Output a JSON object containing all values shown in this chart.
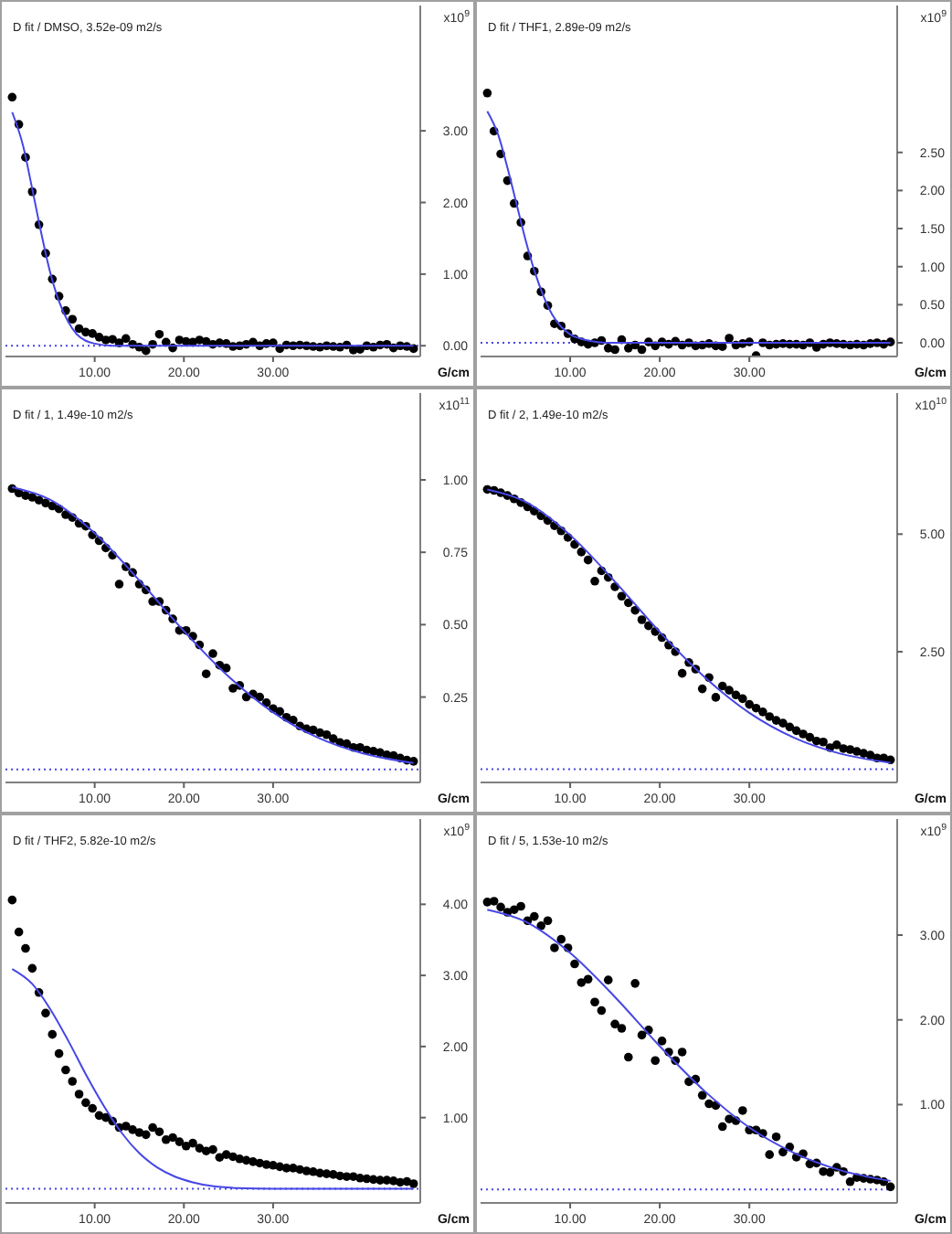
{
  "chart_data": [
    {
      "type": "scatter",
      "title": "D fit / DMSO, 3.52e-09 m2/s",
      "xlabel": "G/cm",
      "ylabel": "x10$^{9}$",
      "xlim": [
        0,
        46.5
      ],
      "xticks": [
        {
          "value": 10,
          "label": "10.00"
        },
        {
          "value": 20,
          "label": "20.00"
        },
        {
          "value": 30,
          "label": "30.00"
        }
      ],
      "ylim": [
        -0.15,
        4.75
      ],
      "yticks": [
        {
          "value": 0,
          "label": "0.00"
        },
        {
          "value": 1,
          "label": "1.00"
        },
        {
          "value": 2,
          "label": "2.00"
        },
        {
          "value": 3,
          "label": "3.00"
        }
      ],
      "x": [
        0.75,
        1.5,
        2.25,
        3,
        3.75,
        4.5,
        5.25,
        6,
        6.75,
        7.5,
        8.25,
        9,
        9.75,
        10.5,
        11.25,
        12,
        12.75,
        13.5,
        14.25,
        15,
        15.75,
        16.5,
        17.25,
        18,
        18.75,
        19.5,
        20.25,
        21,
        21.75,
        22.5,
        23.25,
        24,
        24.75,
        25.5,
        26.25,
        27,
        27.75,
        28.5,
        29.25,
        30,
        30.75,
        31.5,
        32.25,
        33,
        33.75,
        34.5,
        35.25,
        36,
        36.75,
        37.5,
        38.25,
        39,
        39.75,
        40.5,
        41.25,
        42,
        42.75,
        43.5,
        44.25,
        45,
        45.75
      ],
      "series": [
        {
          "marker": "circle",
          "color": "#000000",
          "values": [
            3.47,
            3.09,
            2.63,
            2.15,
            1.69,
            1.29,
            0.93,
            0.69,
            0.49,
            0.37,
            0.24,
            0.19,
            0.17,
            0.12,
            0.08,
            0.09,
            0.04,
            0.1,
            0.02,
            -0.02,
            -0.07,
            0.02,
            0.16,
            0.05,
            -0.03,
            0.08,
            0.06,
            0.05,
            0.08,
            0.06,
            0.02,
            0.04,
            0.03,
            -0.01,
            0.0,
            0.02,
            0.05,
            0.0,
            0.03,
            0.04,
            -0.04,
            0.01,
            0.0,
            0.01,
            0.0,
            -0.01,
            -0.02,
            0.0,
            -0.01,
            -0.02,
            0.01,
            -0.06,
            -0.05,
            0.0,
            -0.02,
            0.01,
            0.02,
            -0.03,
            0.0,
            -0.01,
            -0.04
          ]
        },
        {
          "type": "line",
          "color": "#4646e6",
          "x": [
            0.75,
            2,
            3,
            4,
            5,
            6,
            7,
            8,
            9,
            10,
            12,
            15,
            20,
            30,
            45.75
          ],
          "values": [
            3.26,
            2.78,
            2.19,
            1.58,
            1.03,
            0.62,
            0.34,
            0.16,
            0.07,
            0.03,
            0,
            0,
            0,
            0,
            0
          ]
        }
      ],
      "ref_lines": [
        {
          "axis": "y",
          "value": 0,
          "color": "#4646e6",
          "line_style": "dotted"
        }
      ]
    },
    {
      "type": "scatter",
      "title": "D fit / THF1, 2.89e-09 m2/s",
      "xlabel": "G/cm",
      "ylabel": "x10$^{9}$",
      "xlim": [
        0,
        46.5
      ],
      "xticks": [
        {
          "value": 10,
          "label": "10.00"
        },
        {
          "value": 20,
          "label": "20.00"
        },
        {
          "value": 30,
          "label": "30.00"
        }
      ],
      "ylim": [
        -0.18,
        4.43
      ],
      "yticks": [
        {
          "value": 0,
          "label": "0.00"
        },
        {
          "value": 0.5,
          "label": "0.50"
        },
        {
          "value": 1,
          "label": "1.00"
        },
        {
          "value": 1.5,
          "label": "1.50"
        },
        {
          "value": 2,
          "label": "2.00"
        },
        {
          "value": 2.5,
          "label": "2.50"
        }
      ],
      "x": [
        0.75,
        1.5,
        2.25,
        3,
        3.75,
        4.5,
        5.25,
        6,
        6.75,
        7.5,
        8.25,
        9,
        9.75,
        10.5,
        11.25,
        12,
        12.75,
        13.5,
        14.25,
        15,
        15.75,
        16.5,
        17.25,
        18,
        18.75,
        19.5,
        20.25,
        21,
        21.75,
        22.5,
        23.25,
        24,
        24.75,
        25.5,
        26.25,
        27,
        27.75,
        28.5,
        29.25,
        30,
        30.75,
        31.5,
        32.25,
        33,
        33.75,
        34.5,
        35.25,
        36,
        36.75,
        37.5,
        38.25,
        39,
        39.75,
        40.5,
        41.25,
        42,
        42.75,
        43.5,
        44.25,
        45,
        45.75
      ],
      "series": [
        {
          "marker": "circle",
          "color": "#000000",
          "values": [
            3.28,
            2.78,
            2.48,
            2.13,
            1.83,
            1.58,
            1.14,
            0.94,
            0.67,
            0.49,
            0.25,
            0.22,
            0.12,
            0.05,
            0.01,
            -0.02,
            0.0,
            0.03,
            -0.07,
            -0.09,
            0.04,
            -0.07,
            -0.03,
            -0.09,
            0.01,
            -0.04,
            0.01,
            -0.02,
            0.02,
            -0.03,
            0.0,
            -0.04,
            -0.03,
            -0.01,
            -0.04,
            -0.05,
            0.06,
            -0.03,
            -0.01,
            0.01,
            -0.17,
            0.0,
            -0.03,
            -0.02,
            -0.01,
            -0.02,
            -0.02,
            -0.03,
            0.0,
            -0.06,
            -0.02,
            0.0,
            -0.01,
            -0.02,
            -0.03,
            -0.02,
            -0.03,
            -0.01,
            0.0,
            -0.02,
            0.01
          ]
        },
        {
          "type": "line",
          "color": "#4646e6",
          "x": [
            0.75,
            2,
            3,
            4,
            5,
            6,
            7,
            8,
            9,
            10,
            11,
            12,
            14,
            20,
            30,
            45.75
          ],
          "values": [
            3.04,
            2.72,
            2.3,
            1.83,
            1.36,
            0.95,
            0.62,
            0.37,
            0.21,
            0.11,
            0.06,
            0.03,
            0,
            0,
            0,
            0
          ]
        }
      ],
      "ref_lines": [
        {
          "axis": "y",
          "value": 0,
          "color": "#4646e6",
          "line_style": "dotted"
        }
      ]
    },
    {
      "type": "scatter",
      "title": "D fit / 1, 1.49e-10 m2/s",
      "xlabel": "G/cm",
      "ylabel": "x10$^{11}$",
      "xlim": [
        0,
        46.5
      ],
      "xticks": [
        {
          "value": 10,
          "label": "10.00"
        },
        {
          "value": 20,
          "label": "20.00"
        },
        {
          "value": 30,
          "label": "30.00"
        }
      ],
      "ylim": [
        -0.045,
        1.3
      ],
      "yticks": [
        {
          "value": 0.25,
          "label": "0.25"
        },
        {
          "value": 0.5,
          "label": "0.50"
        },
        {
          "value": 0.75,
          "label": "0.75"
        },
        {
          "value": 1,
          "label": "1.00"
        }
      ],
      "x": [
        0.75,
        1.5,
        2.25,
        3,
        3.75,
        4.5,
        5.25,
        6,
        6.75,
        7.5,
        8.25,
        9,
        9.75,
        10.5,
        11.25,
        12,
        12.75,
        13.5,
        14.25,
        15,
        15.75,
        16.5,
        17.25,
        18,
        18.75,
        19.5,
        20.25,
        21,
        21.75,
        22.5,
        23.25,
        24,
        24.75,
        25.5,
        26.25,
        27,
        27.75,
        28.5,
        29.25,
        30,
        30.75,
        31.5,
        32.25,
        33,
        33.75,
        34.5,
        35.25,
        36,
        36.75,
        37.5,
        38.25,
        39,
        39.75,
        40.5,
        41.25,
        42,
        42.75,
        43.5,
        44.25,
        45,
        45.75
      ],
      "series": [
        {
          "marker": "circle",
          "color": "#000000",
          "values": [
            0.97,
            0.955,
            0.946,
            0.94,
            0.93,
            0.92,
            0.91,
            0.9,
            0.88,
            0.87,
            0.85,
            0.84,
            0.81,
            0.79,
            0.765,
            0.74,
            0.64,
            0.7,
            0.68,
            0.64,
            0.62,
            0.58,
            0.58,
            0.55,
            0.52,
            0.48,
            0.48,
            0.46,
            0.43,
            0.33,
            0.4,
            0.36,
            0.35,
            0.28,
            0.29,
            0.25,
            0.26,
            0.25,
            0.23,
            0.21,
            0.2,
            0.18,
            0.17,
            0.15,
            0.14,
            0.136,
            0.127,
            0.12,
            0.106,
            0.093,
            0.089,
            0.076,
            0.076,
            0.067,
            0.063,
            0.058,
            0.05,
            0.048,
            0.039,
            0.032,
            0.028
          ]
        },
        {
          "type": "line",
          "color": "#4646e6",
          "x": [
            0.75,
            5,
            10,
            15,
            20,
            25,
            30,
            35,
            40,
            45.75
          ],
          "values": [
            0.975,
            0.932,
            0.816,
            0.653,
            0.478,
            0.321,
            0.197,
            0.11,
            0.056,
            0.022
          ]
        }
      ],
      "ref_lines": [
        {
          "axis": "y",
          "value": 0,
          "color": "#4646e6",
          "line_style": "dotted"
        }
      ]
    },
    {
      "type": "scatter",
      "title": "D fit / 2, 1.49e-10 m2/s",
      "xlabel": "G/cm",
      "ylabel": "x10$^{10}$",
      "xlim": [
        0,
        46.5
      ],
      "xticks": [
        {
          "value": 10,
          "label": "10.00"
        },
        {
          "value": 20,
          "label": "20.00"
        },
        {
          "value": 30,
          "label": "30.00"
        }
      ],
      "ylim": [
        -0.28,
        8
      ],
      "yticks": [
        {
          "value": 2.5,
          "label": "2.50"
        },
        {
          "value": 5,
          "label": "5.00"
        }
      ],
      "x": [
        0.75,
        1.5,
        2.25,
        3,
        3.75,
        4.5,
        5.25,
        6,
        6.75,
        7.5,
        8.25,
        9,
        9.75,
        10.5,
        11.25,
        12,
        12.75,
        13.5,
        14.25,
        15,
        15.75,
        16.5,
        17.25,
        18,
        18.75,
        19.5,
        20.25,
        21,
        21.75,
        22.5,
        23.25,
        24,
        24.75,
        25.5,
        26.25,
        27,
        27.75,
        28.5,
        29.25,
        30,
        30.75,
        31.5,
        32.25,
        33,
        33.75,
        34.5,
        35.25,
        36,
        36.75,
        37.5,
        38.25,
        39,
        39.75,
        40.5,
        41.25,
        42,
        42.75,
        43.5,
        44.25,
        45,
        45.75
      ],
      "series": [
        {
          "marker": "circle",
          "color": "#000000",
          "values": [
            5.95,
            5.93,
            5.88,
            5.82,
            5.75,
            5.67,
            5.58,
            5.49,
            5.39,
            5.29,
            5.18,
            5.07,
            4.93,
            4.78,
            4.62,
            4.45,
            4.0,
            4.22,
            4.08,
            3.88,
            3.68,
            3.54,
            3.38,
            3.18,
            3.05,
            2.93,
            2.8,
            2.64,
            2.5,
            2.04,
            2.27,
            2.13,
            1.71,
            1.95,
            1.53,
            1.77,
            1.68,
            1.58,
            1.5,
            1.38,
            1.3,
            1.22,
            1.12,
            1.04,
            0.98,
            0.9,
            0.82,
            0.75,
            0.68,
            0.6,
            0.58,
            0.46,
            0.52,
            0.44,
            0.42,
            0.38,
            0.34,
            0.3,
            0.24,
            0.24,
            0.2
          ]
        },
        {
          "type": "line",
          "color": "#4646e6",
          "x": [
            0.75,
            5,
            10,
            15,
            20,
            25,
            30,
            35,
            40,
            45.75
          ],
          "values": [
            5.95,
            5.69,
            4.98,
            3.99,
            2.92,
            1.96,
            1.2,
            0.67,
            0.34,
            0.14
          ]
        }
      ],
      "ref_lines": [
        {
          "axis": "y",
          "value": 0,
          "color": "#4646e6",
          "line_style": "dotted"
        }
      ]
    },
    {
      "type": "scatter",
      "title": "D fit / THF2, 5.82e-10 m2/s",
      "xlabel": "G/cm",
      "ylabel": "x10$^{9}$",
      "xlim": [
        0,
        46.5
      ],
      "xticks": [
        {
          "value": 10,
          "label": "10.00"
        },
        {
          "value": 20,
          "label": "20.00"
        },
        {
          "value": 30,
          "label": "30.00"
        }
      ],
      "ylim": [
        -0.2,
        5.2
      ],
      "yticks": [
        {
          "value": 1,
          "label": "1.00"
        },
        {
          "value": 2,
          "label": "2.00"
        },
        {
          "value": 3,
          "label": "3.00"
        },
        {
          "value": 4,
          "label": "4.00"
        }
      ],
      "x": [
        0.75,
        1.5,
        2.25,
        3,
        3.75,
        4.5,
        5.25,
        6,
        6.75,
        7.5,
        8.25,
        9,
        9.75,
        10.5,
        11.25,
        12,
        12.75,
        13.5,
        14.25,
        15,
        15.75,
        16.5,
        17.25,
        18,
        18.75,
        19.5,
        20.25,
        21,
        21.75,
        22.5,
        23.25,
        24,
        24.75,
        25.5,
        26.25,
        27,
        27.75,
        28.5,
        29.25,
        30,
        30.75,
        31.5,
        32.25,
        33,
        33.75,
        34.5,
        35.25,
        36,
        36.75,
        37.5,
        38.25,
        39,
        39.75,
        40.5,
        41.25,
        42,
        42.75,
        43.5,
        44.25,
        45,
        45.75
      ],
      "series": [
        {
          "marker": "circle",
          "color": "#000000",
          "values": [
            4.06,
            3.61,
            3.38,
            3.1,
            2.76,
            2.47,
            2.17,
            1.9,
            1.67,
            1.51,
            1.33,
            1.21,
            1.13,
            1.03,
            1.0,
            0.95,
            0.86,
            0.88,
            0.83,
            0.79,
            0.76,
            0.86,
            0.8,
            0.69,
            0.72,
            0.66,
            0.6,
            0.64,
            0.57,
            0.53,
            0.55,
            0.44,
            0.48,
            0.45,
            0.42,
            0.4,
            0.38,
            0.36,
            0.34,
            0.33,
            0.31,
            0.29,
            0.29,
            0.27,
            0.25,
            0.24,
            0.22,
            0.21,
            0.2,
            0.18,
            0.17,
            0.17,
            0.15,
            0.14,
            0.13,
            0.12,
            0.12,
            0.11,
            0.09,
            0.1,
            0.07
          ]
        },
        {
          "type": "line",
          "color": "#4646e6",
          "x": [
            0.75,
            3,
            5,
            7,
            9,
            11,
            13,
            15,
            17,
            19,
            21,
            23,
            26,
            30,
            45.75
          ],
          "values": [
            3.09,
            2.88,
            2.53,
            2.09,
            1.61,
            1.17,
            0.79,
            0.5,
            0.3,
            0.17,
            0.09,
            0.04,
            0.01,
            0,
            0
          ]
        }
      ],
      "ref_lines": [
        {
          "axis": "y",
          "value": 0,
          "color": "#4646e6",
          "line_style": "dotted"
        }
      ]
    },
    {
      "type": "scatter",
      "title": "D fit / 5, 1.53e-10 m2/s",
      "xlabel": "G/cm",
      "ylabel": "x10$^{9}$",
      "xlim": [
        0,
        46.5
      ],
      "xticks": [
        {
          "value": 10,
          "label": "10.00"
        },
        {
          "value": 20,
          "label": "20.00"
        },
        {
          "value": 30,
          "label": "30.00"
        }
      ],
      "ylim": [
        -0.16,
        4.37
      ],
      "yticks": [
        {
          "value": 1,
          "label": "1.00"
        },
        {
          "value": 2,
          "label": "2.00"
        },
        {
          "value": 3,
          "label": "3.00"
        }
      ],
      "x": [
        0.75,
        1.5,
        2.25,
        3,
        3.75,
        4.5,
        5.25,
        6,
        6.75,
        7.5,
        8.25,
        9,
        9.75,
        10.5,
        11.25,
        12,
        12.75,
        13.5,
        14.25,
        15,
        15.75,
        16.5,
        17.25,
        18,
        18.75,
        19.5,
        20.25,
        21,
        21.75,
        22.5,
        23.25,
        24,
        24.75,
        25.5,
        26.25,
        27,
        27.75,
        28.5,
        29.25,
        30,
        30.75,
        31.5,
        32.25,
        33,
        33.75,
        34.5,
        35.25,
        36,
        36.75,
        37.5,
        38.25,
        39,
        39.75,
        40.5,
        41.25,
        42,
        42.75,
        43.5,
        44.25,
        45,
        45.75
      ],
      "series": [
        {
          "marker": "circle",
          "color": "#000000",
          "values": [
            3.39,
            3.4,
            3.33,
            3.27,
            3.3,
            3.34,
            3.17,
            3.22,
            3.11,
            3.17,
            2.85,
            2.95,
            2.85,
            2.66,
            2.44,
            2.48,
            2.21,
            2.11,
            2.47,
            1.95,
            1.9,
            1.56,
            2.43,
            1.82,
            1.88,
            1.52,
            1.75,
            1.62,
            1.52,
            1.62,
            1.27,
            1.3,
            1.11,
            1.01,
            0.99,
            0.74,
            0.83,
            0.81,
            0.93,
            0.7,
            0.7,
            0.66,
            0.41,
            0.62,
            0.44,
            0.5,
            0.38,
            0.42,
            0.3,
            0.31,
            0.21,
            0.2,
            0.26,
            0.21,
            0.09,
            0.14,
            0.13,
            0.12,
            0.11,
            0.09,
            0.03
          ]
        },
        {
          "type": "line",
          "color": "#4646e6",
          "x": [
            0.75,
            5,
            10,
            15,
            20,
            25,
            30,
            35,
            40,
            45.75
          ],
          "values": [
            3.3,
            3.16,
            2.79,
            2.27,
            1.69,
            1.16,
            0.73,
            0.43,
            0.23,
            0.1
          ]
        }
      ],
      "ref_lines": [
        {
          "axis": "y",
          "value": 0,
          "color": "#4646e6",
          "line_style": "dotted"
        }
      ]
    }
  ]
}
